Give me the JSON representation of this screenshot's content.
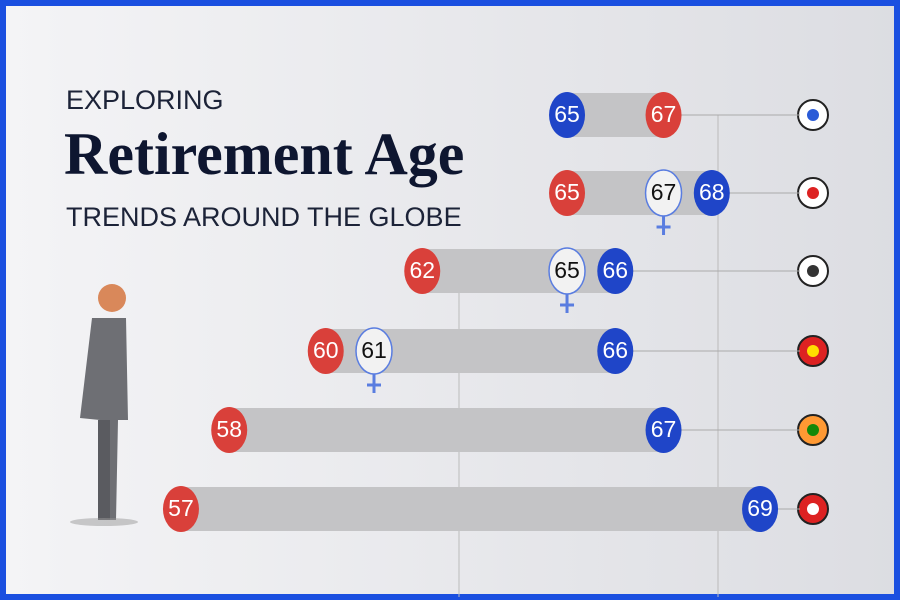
{
  "chart_data": {
    "type": "dumbbell",
    "title_top": "EXPLORING",
    "title": "Retirement Age",
    "subtitle": "TRENDS AROUND THE GLOBE",
    "series": [
      {
        "color": "#d9403a",
        "values": [
          67,
          65,
          62,
          60,
          58,
          57
        ]
      },
      {
        "color": "#f2f2f2",
        "values": [
          null,
          67,
          65,
          61,
          null,
          null
        ]
      },
      {
        "color": "#1f45c8",
        "values": [
          65,
          68,
          66,
          66,
          67,
          69
        ]
      }
    ],
    "xlim": [
      53.25,
      71.9
    ]
  }
}
